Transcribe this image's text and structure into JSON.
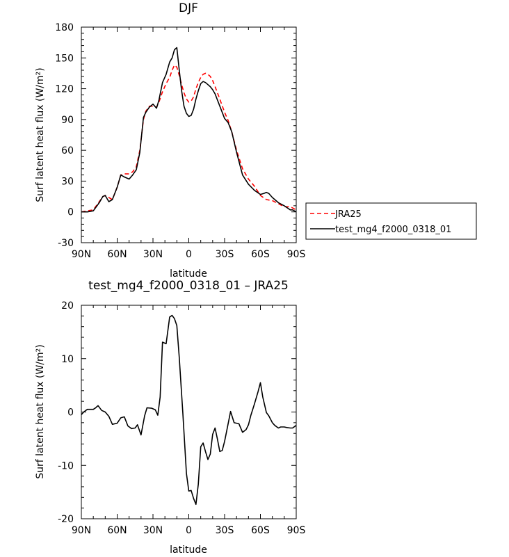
{
  "chart_data": [
    {
      "type": "line",
      "title": "DJF",
      "xlabel": "latitude",
      "ylabel": "Surf latent heat flux (W/m²)",
      "ylim": [
        -30,
        180
      ],
      "yticks": [
        -30,
        0,
        30,
        60,
        90,
        120,
        150,
        180
      ],
      "xlim": [
        90,
        -90
      ],
      "xticks": [
        90,
        60,
        30,
        0,
        -30,
        -60,
        -90
      ],
      "xticklabels": [
        "90N",
        "60N",
        "30N",
        "0",
        "30S",
        "60S",
        "90S"
      ],
      "grid": false,
      "legend_position": "right",
      "series": [
        {
          "name": "JRA25",
          "color": "#ff0000",
          "dash": "dashed",
          "x": [
            90,
            85,
            80,
            75,
            72,
            70,
            67,
            64,
            60,
            57,
            54,
            50,
            47,
            44,
            41,
            38,
            36,
            33,
            30,
            27,
            25,
            22,
            19,
            16,
            14,
            12,
            10,
            8,
            6,
            4,
            2,
            0,
            -2,
            -4,
            -6,
            -8,
            -10,
            -12,
            -14,
            -16,
            -18,
            -20,
            -22,
            -25,
            -30,
            -33,
            -36,
            -40,
            -45,
            -50,
            -55,
            -60,
            -65,
            -70,
            -75,
            -80,
            -85,
            -90
          ],
          "values": [
            0,
            1,
            2,
            10,
            15,
            16,
            14,
            12,
            24,
            36,
            37,
            37,
            39,
            44,
            60,
            90,
            98,
            103,
            103,
            102,
            107,
            117,
            125,
            131,
            138,
            143,
            141,
            133,
            124,
            116,
            110,
            107,
            108,
            112,
            120,
            126,
            131,
            134,
            135,
            134,
            132,
            128,
            122,
            113,
            97,
            89,
            78,
            60,
            42,
            32,
            25,
            16,
            12,
            11,
            8,
            5,
            5,
            2
          ]
        },
        {
          "name": "test_mg4_f2000_0318_01",
          "color": "#000000",
          "dash": "solid",
          "x": [
            90,
            85,
            80,
            75,
            72,
            70,
            67,
            64,
            60,
            57,
            54,
            50,
            47,
            44,
            41,
            38,
            36,
            33,
            30,
            27,
            25,
            22,
            19,
            16,
            14,
            12,
            10,
            8,
            6,
            4,
            2,
            0,
            -2,
            -4,
            -6,
            -8,
            -10,
            -12,
            -14,
            -16,
            -18,
            -20,
            -22,
            -25,
            -30,
            -33,
            -36,
            -40,
            -45,
            -50,
            -55,
            -60,
            -63,
            -65,
            -67,
            -70,
            -75,
            -80,
            -85,
            -87,
            -90
          ],
          "values": [
            0,
            0,
            1,
            9,
            15,
            16,
            10,
            12,
            24,
            36,
            34,
            32,
            36,
            41,
            58,
            92,
            97,
            102,
            105,
            101,
            109,
            126,
            134,
            146,
            150,
            158,
            160,
            138,
            118,
            103,
            96,
            93,
            94,
            100,
            110,
            118,
            125,
            127,
            126,
            124,
            122,
            119,
            115,
            106,
            91,
            87,
            78,
            58,
            36,
            27,
            21,
            17,
            18,
            19,
            18,
            14,
            9,
            6,
            2,
            2,
            0
          ]
        }
      ]
    },
    {
      "type": "line",
      "title": "test_mg4_f2000_0318_01 – JRA25",
      "xlabel": "latitude",
      "ylabel": "Surf latent heat flux (W/m²)",
      "ylim": [
        -20,
        20
      ],
      "yticks": [
        -20,
        -10,
        0,
        10,
        20
      ],
      "xlim": [
        90,
        -90
      ],
      "xticks": [
        90,
        60,
        30,
        0,
        -30,
        -60,
        -90
      ],
      "xticklabels": [
        "90N",
        "60N",
        "30N",
        "0",
        "30S",
        "60S",
        "90S"
      ],
      "grid": false,
      "series": [
        {
          "color": "#000000",
          "dash": "solid",
          "x": [
            90,
            88,
            85,
            82,
            80,
            78,
            76,
            73,
            70,
            67,
            64,
            60,
            57,
            54,
            51,
            48,
            45,
            43,
            40,
            37,
            35,
            31,
            28,
            26,
            24,
            22,
            19,
            16,
            14,
            12,
            10,
            8,
            5,
            2,
            0,
            -2,
            -4,
            -6,
            -8,
            -10,
            -12,
            -14,
            -16,
            -18,
            -20,
            -22,
            -24,
            -26,
            -28,
            -30,
            -32,
            -35,
            -38,
            -40,
            -42,
            -45,
            -48,
            -50,
            -52,
            -55,
            -58,
            -60,
            -62,
            -65,
            -67,
            -70,
            -72,
            -75,
            -77,
            -80,
            -82,
            -85,
            -87,
            -90
          ],
          "values": [
            -0.5,
            0,
            0.5,
            0.5,
            0.5,
            0.8,
            1.2,
            0.3,
            0,
            -0.8,
            -2.3,
            -2.1,
            -1.1,
            -0.9,
            -2.6,
            -3.1,
            -3,
            -2.4,
            -4.3,
            -0.7,
            0.8,
            0.7,
            0.4,
            -0.6,
            2.8,
            13.1,
            12.8,
            17.8,
            18.1,
            17.5,
            16.2,
            10.2,
            -0.1,
            -11.5,
            -14.8,
            -14.7,
            -16.2,
            -17.3,
            -13.5,
            -6.5,
            -5.8,
            -7.4,
            -8.9,
            -7.9,
            -4.2,
            -3,
            -5.1,
            -7.4,
            -7.2,
            -5.5,
            -3.3,
            0.1,
            -2,
            -2.1,
            -2.2,
            -3.8,
            -3.3,
            -2.4,
            -0.6,
            1.5,
            3.8,
            5.5,
            2.8,
            -0.1,
            -0.7,
            -2,
            -2.5,
            -3,
            -2.8,
            -2.8,
            -2.9,
            -3,
            -3,
            -2.5
          ]
        }
      ]
    }
  ]
}
